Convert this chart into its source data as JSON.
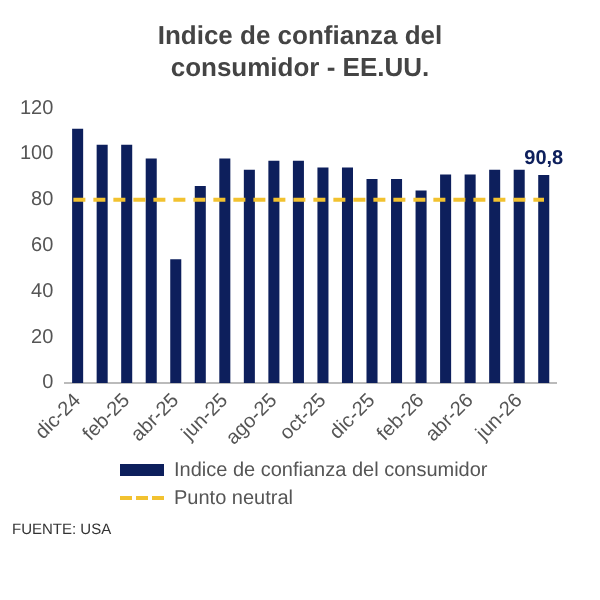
{
  "chart_data": {
    "type": "bar",
    "title": "Indice de confianza del consumidor - EE.UU.",
    "categories": [
      "dic-24",
      null,
      "feb-25",
      null,
      "abr-25",
      null,
      "jun-25",
      null,
      "ago-25",
      null,
      "oct-25",
      null,
      "dic-25",
      null,
      "feb-26",
      null,
      "abr-26",
      null,
      "jun-26",
      null
    ],
    "series": [
      {
        "name": "Indice de confianza del consumidor",
        "color": "#0d1f5c",
        "values": [
          111,
          104,
          104,
          98,
          54,
          86,
          98,
          93,
          97,
          97,
          94,
          94,
          89,
          89,
          84,
          91,
          91,
          93,
          93,
          90.8
        ],
        "value_labels": [
          null,
          null,
          null,
          null,
          null,
          null,
          null,
          null,
          null,
          null,
          null,
          null,
          null,
          null,
          null,
          null,
          null,
          null,
          null,
          "90,8"
        ]
      }
    ],
    "ref_lines": [
      {
        "axis": "y",
        "value": 80,
        "label": "Punto neutral",
        "color": "#f2c230",
        "line_style": "dashed"
      }
    ],
    "ylim": [
      0,
      120
    ],
    "yticks": [
      0,
      20,
      40,
      60,
      80,
      100,
      120
    ],
    "grid": false,
    "legend": "bottom",
    "annotations": [
      "FUENTE: USA"
    ]
  }
}
